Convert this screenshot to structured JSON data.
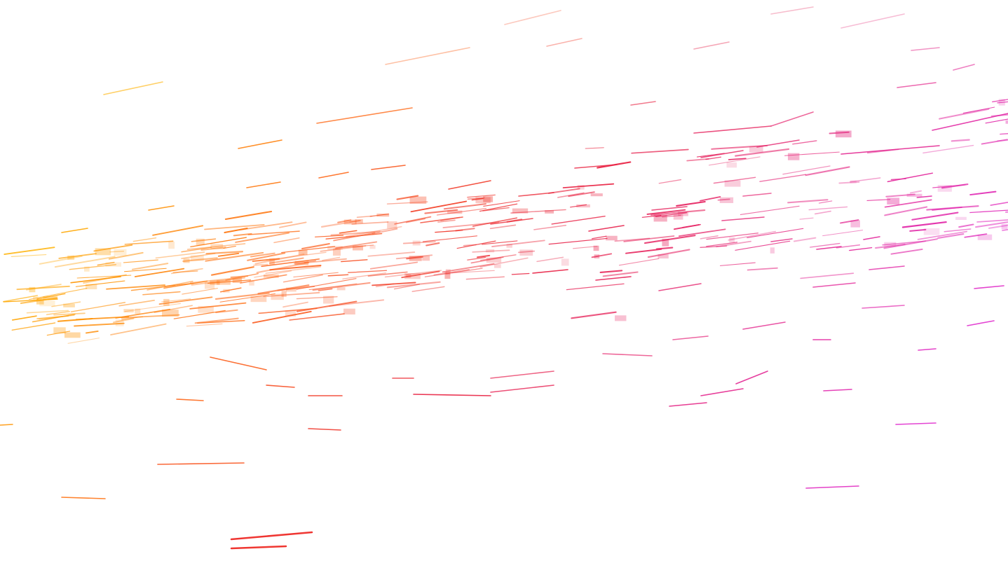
{
  "palette": {
    "background": "#ffffff",
    "left": "#ffb000",
    "middle_left": "#ff6a1a",
    "middle": "#e8203c",
    "right": "#e030d0"
  }
}
